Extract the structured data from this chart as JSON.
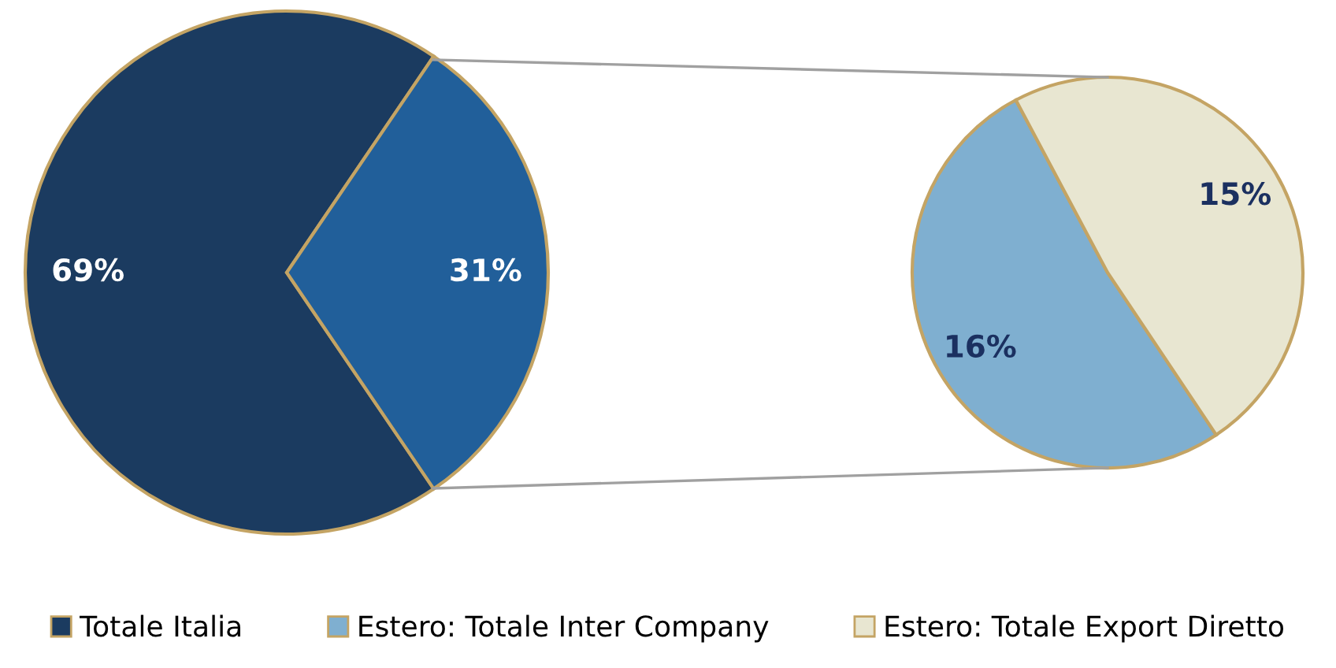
{
  "chart_data": [
    {
      "type": "pie",
      "categories": [
        "Totale Italia",
        null
      ],
      "values": [
        69,
        31
      ],
      "value_labels": [
        "69%",
        "31%"
      ],
      "colors": [
        "#1b3b60",
        "#215f9a"
      ],
      "legend": "bottom"
    },
    {
      "type": "pie",
      "categories": [
        "Estero: Totale Inter Company",
        "Estero: Totale Export Diretto"
      ],
      "values": [
        16,
        15
      ],
      "value_labels": [
        "16%",
        "15%"
      ],
      "colors": [
        "#7fafd0",
        "#e8e6d1"
      ],
      "legend": "bottom"
    }
  ]
}
